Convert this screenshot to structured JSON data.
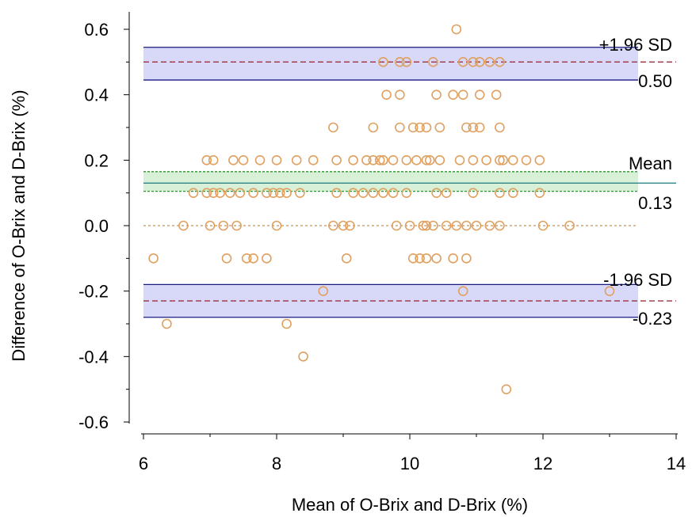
{
  "chart_data": {
    "type": "scatter",
    "title": "",
    "xlabel": "Mean of O-Brix and D-Brix (%)",
    "ylabel": "Difference of O-Brix and D-Brix (%)",
    "xlim": [
      6,
      14
    ],
    "ylim": [
      -0.65,
      0.65
    ],
    "xticks": [
      6,
      8,
      10,
      12,
      14
    ],
    "xtick_labels": [
      "6",
      "8",
      "10",
      "12",
      "14"
    ],
    "yticks": [
      0.6,
      0.4,
      0.2,
      0.0,
      -0.2,
      -0.4,
      -0.6
    ],
    "ytick_labels": [
      "0.6",
      "0.4",
      "0.2",
      "0.0",
      "-0.2",
      "-0.4",
      "-0.6"
    ],
    "grid": false,
    "reference_lines": {
      "upper_loa": {
        "value": 0.5,
        "ci": [
          0.445,
          0.545
        ],
        "label_top": "+1.96 SD",
        "label_bottom": "0.50"
      },
      "mean": {
        "value": 0.13,
        "ci": [
          0.105,
          0.165
        ],
        "label_top": "Mean",
        "label_bottom": "0.13"
      },
      "lower_loa": {
        "value": -0.23,
        "ci": [
          -0.28,
          -0.18
        ],
        "label_top": "-1.96 SD",
        "label_bottom": "-0.23"
      },
      "zero": {
        "value": 0.0
      }
    },
    "colors": {
      "points": "#e0a060",
      "loa_band": "#d8d8f8",
      "loa_line": "#1a1a80",
      "loa_dashed": "#a03040",
      "mean_band": "#d8f0d8",
      "mean_line": "#1a7a7a",
      "mean_ci": "#2a9a2a",
      "zero_line": "#d09040"
    },
    "series": [
      {
        "points": [
          [
            10.7,
            0.6
          ],
          [
            9.6,
            0.5
          ],
          [
            9.85,
            0.5
          ],
          [
            9.95,
            0.5
          ],
          [
            10.35,
            0.5
          ],
          [
            10.8,
            0.5
          ],
          [
            10.95,
            0.5
          ],
          [
            11.05,
            0.5
          ],
          [
            11.2,
            0.5
          ],
          [
            11.35,
            0.5
          ],
          [
            9.65,
            0.4
          ],
          [
            9.85,
            0.4
          ],
          [
            10.4,
            0.4
          ],
          [
            10.65,
            0.4
          ],
          [
            10.8,
            0.4
          ],
          [
            11.05,
            0.4
          ],
          [
            11.3,
            0.4
          ],
          [
            8.85,
            0.3
          ],
          [
            9.45,
            0.3
          ],
          [
            9.85,
            0.3
          ],
          [
            10.05,
            0.3
          ],
          [
            10.15,
            0.3
          ],
          [
            10.25,
            0.3
          ],
          [
            10.45,
            0.3
          ],
          [
            10.85,
            0.3
          ],
          [
            10.95,
            0.3
          ],
          [
            11.05,
            0.3
          ],
          [
            11.35,
            0.3
          ],
          [
            6.95,
            0.2
          ],
          [
            7.05,
            0.2
          ],
          [
            7.35,
            0.2
          ],
          [
            7.5,
            0.2
          ],
          [
            7.75,
            0.2
          ],
          [
            8.0,
            0.2
          ],
          [
            8.3,
            0.2
          ],
          [
            8.55,
            0.2
          ],
          [
            8.9,
            0.2
          ],
          [
            9.15,
            0.2
          ],
          [
            9.35,
            0.2
          ],
          [
            9.45,
            0.2
          ],
          [
            9.55,
            0.2
          ],
          [
            9.6,
            0.2
          ],
          [
            9.75,
            0.2
          ],
          [
            9.95,
            0.2
          ],
          [
            10.1,
            0.2
          ],
          [
            10.25,
            0.2
          ],
          [
            10.3,
            0.2
          ],
          [
            10.45,
            0.2
          ],
          [
            10.75,
            0.2
          ],
          [
            10.95,
            0.2
          ],
          [
            11.15,
            0.2
          ],
          [
            11.35,
            0.2
          ],
          [
            11.4,
            0.2
          ],
          [
            11.55,
            0.2
          ],
          [
            11.75,
            0.2
          ],
          [
            11.95,
            0.2
          ],
          [
            6.75,
            0.1
          ],
          [
            6.95,
            0.1
          ],
          [
            7.05,
            0.1
          ],
          [
            7.15,
            0.1
          ],
          [
            7.3,
            0.1
          ],
          [
            7.45,
            0.1
          ],
          [
            7.65,
            0.1
          ],
          [
            7.85,
            0.1
          ],
          [
            7.95,
            0.1
          ],
          [
            8.05,
            0.1
          ],
          [
            8.15,
            0.1
          ],
          [
            8.35,
            0.1
          ],
          [
            8.9,
            0.1
          ],
          [
            9.15,
            0.1
          ],
          [
            9.3,
            0.1
          ],
          [
            9.45,
            0.1
          ],
          [
            9.6,
            0.1
          ],
          [
            9.75,
            0.1
          ],
          [
            9.95,
            0.1
          ],
          [
            10.4,
            0.1
          ],
          [
            10.55,
            0.1
          ],
          [
            10.95,
            0.1
          ],
          [
            11.35,
            0.1
          ],
          [
            11.55,
            0.1
          ],
          [
            11.95,
            0.1
          ],
          [
            6.6,
            0.0
          ],
          [
            7.0,
            0.0
          ],
          [
            7.2,
            0.0
          ],
          [
            7.4,
            0.0
          ],
          [
            8.0,
            0.0
          ],
          [
            8.85,
            0.0
          ],
          [
            9.0,
            0.0
          ],
          [
            9.1,
            0.0
          ],
          [
            9.8,
            0.0
          ],
          [
            10.0,
            0.0
          ],
          [
            10.2,
            0.0
          ],
          [
            10.25,
            0.0
          ],
          [
            10.35,
            0.0
          ],
          [
            10.55,
            0.0
          ],
          [
            10.7,
            0.0
          ],
          [
            10.85,
            0.0
          ],
          [
            11.0,
            0.0
          ],
          [
            11.2,
            0.0
          ],
          [
            11.35,
            0.0
          ],
          [
            12.0,
            0.0
          ],
          [
            12.4,
            0.0
          ],
          [
            6.15,
            -0.1
          ],
          [
            7.25,
            -0.1
          ],
          [
            7.55,
            -0.1
          ],
          [
            7.65,
            -0.1
          ],
          [
            7.85,
            -0.1
          ],
          [
            9.05,
            -0.1
          ],
          [
            10.05,
            -0.1
          ],
          [
            10.15,
            -0.1
          ],
          [
            10.25,
            -0.1
          ],
          [
            10.4,
            -0.1
          ],
          [
            10.65,
            -0.1
          ],
          [
            10.85,
            -0.1
          ],
          [
            8.7,
            -0.2
          ],
          [
            10.8,
            -0.2
          ],
          [
            13.0,
            -0.2
          ],
          [
            6.35,
            -0.3
          ],
          [
            8.15,
            -0.3
          ],
          [
            8.4,
            -0.4
          ],
          [
            11.45,
            -0.5
          ]
        ]
      }
    ]
  }
}
